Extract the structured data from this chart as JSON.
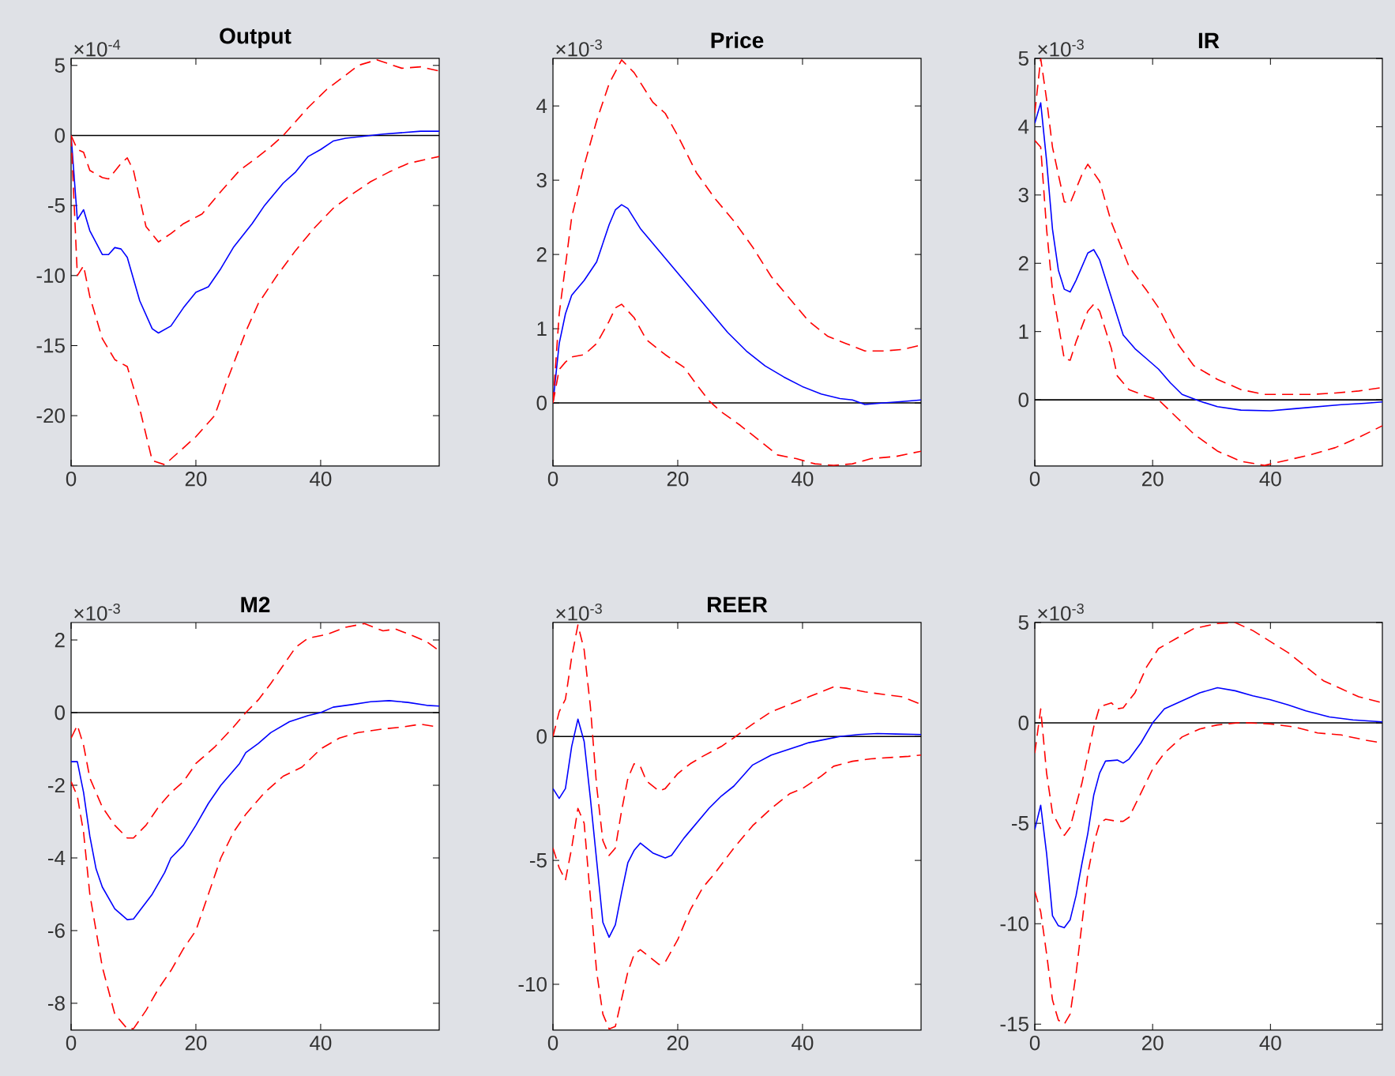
{
  "chart_data": [
    {
      "type": "line",
      "title": "Output",
      "annotations": [
        "×10$^{-4}$"
      ],
      "xlim": [
        0,
        59
      ],
      "xticks": [
        0,
        20,
        40
      ],
      "ylim": [
        -23.6,
        5.5
      ],
      "yticks": [
        -20,
        -15,
        -10,
        -5,
        0,
        5
      ],
      "ref_lines": [
        {
          "axis": "y",
          "value": 0,
          "color": "#000000"
        }
      ],
      "series": [
        {
          "color": "#0000ff",
          "line_style": "solid",
          "x": [
            0,
            1,
            2,
            3,
            5,
            6,
            7,
            8,
            9,
            11,
            13,
            14,
            16,
            18,
            20,
            22,
            24,
            26,
            29,
            31,
            34,
            36,
            38,
            40,
            42,
            44,
            46,
            48,
            50,
            53,
            56,
            59
          ],
          "values": [
            0,
            -6,
            -5.3,
            -6.8,
            -8.5,
            -8.5,
            -8,
            -8.1,
            -8.7,
            -11.8,
            -13.8,
            -14.1,
            -13.6,
            -12.3,
            -11.2,
            -10.8,
            -9.5,
            -8,
            -6.3,
            -5,
            -3.4,
            -2.6,
            -1.5,
            -1,
            -0.4,
            -0.2,
            -0.1,
            0,
            0.1,
            0.2,
            0.3,
            0.3
          ]
        },
        {
          "color": "#ff0000",
          "line_style": "dashed",
          "x": [
            0,
            1,
            2,
            3,
            5,
            6,
            8,
            9,
            10,
            12,
            14,
            16,
            18,
            21,
            24,
            27,
            30,
            32,
            34,
            36,
            38,
            41,
            44,
            46,
            49,
            51,
            53,
            56,
            59
          ],
          "values": [
            0,
            -1,
            -1.2,
            -2.5,
            -3,
            -3.1,
            -2,
            -1.6,
            -2.5,
            -6.5,
            -7.6,
            -7,
            -6.3,
            -5.6,
            -4,
            -2.5,
            -1.5,
            -0.8,
            0,
            1,
            2,
            3.3,
            4.3,
            5,
            5.4,
            5.1,
            4.8,
            4.9,
            4.6
          ]
        },
        {
          "color": "#ff0000",
          "line_style": "dashed",
          "x": [
            0,
            1,
            2,
            3,
            5,
            7,
            9,
            11,
            13,
            15,
            17,
            20,
            23,
            25,
            28,
            30,
            33,
            36,
            39,
            42,
            45,
            48,
            51,
            54,
            57,
            59
          ],
          "values": [
            0,
            -10,
            -9.3,
            -11.5,
            -14.5,
            -16,
            -16.5,
            -19.5,
            -23.2,
            -23.5,
            -22.7,
            -21.5,
            -20,
            -17.5,
            -14,
            -12,
            -10,
            -8.2,
            -6.6,
            -5.2,
            -4.2,
            -3.3,
            -2.6,
            -2,
            -1.7,
            -1.5
          ]
        }
      ]
    },
    {
      "type": "line",
      "title": "Price",
      "annotations": [
        "×10$^{-3}$"
      ],
      "xlim": [
        0,
        59
      ],
      "xticks": [
        0,
        20,
        40
      ],
      "ylim": [
        -0.85,
        4.64
      ],
      "yticks": [
        0,
        1,
        2,
        3,
        4
      ],
      "ref_lines": [
        {
          "axis": "y",
          "value": 0,
          "color": "#000000"
        }
      ],
      "series": [
        {
          "color": "#0000ff",
          "line_style": "solid",
          "x": [
            0,
            1,
            2,
            3,
            5,
            7,
            9,
            10,
            11,
            12,
            14,
            16,
            18,
            20,
            21,
            23,
            26,
            28,
            31,
            34,
            37,
            40,
            43,
            46,
            48,
            50,
            53,
            56,
            59
          ],
          "values": [
            0,
            0.8,
            1.2,
            1.45,
            1.65,
            1.9,
            2.4,
            2.6,
            2.67,
            2.62,
            2.35,
            2.15,
            1.95,
            1.75,
            1.65,
            1.45,
            1.15,
            0.95,
            0.7,
            0.5,
            0.35,
            0.22,
            0.12,
            0.06,
            0.04,
            -0.02,
            0,
            0.02,
            0.04
          ]
        },
        {
          "color": "#ff0000",
          "line_style": "dashed",
          "x": [
            0,
            1,
            3,
            5,
            7,
            9,
            11,
            13,
            16,
            18,
            20,
            23,
            26,
            29,
            32,
            35,
            38,
            41,
            44,
            47,
            50,
            53,
            56,
            59
          ],
          "values": [
            0,
            1.2,
            2.5,
            3.2,
            3.8,
            4.3,
            4.62,
            4.45,
            4.05,
            3.9,
            3.6,
            3.1,
            2.75,
            2.45,
            2.1,
            1.7,
            1.4,
            1.1,
            0.9,
            0.8,
            0.7,
            0.7,
            0.72,
            0.78
          ]
        },
        {
          "color": "#ff0000",
          "line_style": "dashed",
          "x": [
            0,
            1,
            2,
            3,
            5,
            7,
            9,
            10,
            11,
            13,
            15,
            18,
            21,
            23,
            25,
            27,
            30,
            33,
            36,
            39,
            42,
            45,
            48,
            51,
            55,
            59
          ],
          "values": [
            0,
            0.45,
            0.55,
            0.62,
            0.65,
            0.8,
            1.1,
            1.28,
            1.33,
            1.15,
            0.85,
            0.65,
            0.48,
            0.25,
            0.03,
            -0.12,
            -0.3,
            -0.5,
            -0.7,
            -0.75,
            -0.82,
            -0.84,
            -0.82,
            -0.75,
            -0.72,
            -0.65
          ]
        }
      ]
    },
    {
      "type": "line",
      "title": "IR",
      "annotations": [
        "×10$^{-3}$"
      ],
      "xlim": [
        0,
        59
      ],
      "xticks": [
        0,
        20,
        40
      ],
      "ylim": [
        -0.97,
        5
      ],
      "yticks": [
        0,
        1,
        2,
        3,
        4,
        5
      ],
      "ref_lines": [
        {
          "axis": "y",
          "value": 0,
          "color": "#000000"
        }
      ],
      "series": [
        {
          "color": "#0000ff",
          "line_style": "solid",
          "x": [
            0,
            1,
            2,
            3,
            4,
            5,
            6,
            7,
            9,
            10,
            11,
            13,
            15,
            17,
            19,
            21,
            23,
            25,
            28,
            31,
            35,
            40,
            44,
            48,
            52,
            56,
            59
          ],
          "values": [
            4.05,
            4.35,
            3.5,
            2.5,
            1.9,
            1.62,
            1.58,
            1.75,
            2.15,
            2.2,
            2.05,
            1.5,
            0.95,
            0.75,
            0.6,
            0.45,
            0.25,
            0.08,
            -0.02,
            -0.1,
            -0.15,
            -0.16,
            -0.13,
            -0.1,
            -0.07,
            -0.05,
            -0.03
          ]
        },
        {
          "color": "#ff0000",
          "line_style": "dashed",
          "x": [
            0,
            1,
            2,
            3,
            5,
            6,
            8,
            9,
            11,
            13,
            16,
            19,
            21,
            24,
            27,
            31,
            35,
            39,
            43,
            47,
            51,
            55,
            59
          ],
          "values": [
            4.2,
            5,
            4.4,
            3.7,
            2.9,
            2.88,
            3.3,
            3.45,
            3.2,
            2.6,
            1.95,
            1.6,
            1.35,
            0.85,
            0.5,
            0.3,
            0.15,
            0.08,
            0.08,
            0.08,
            0.1,
            0.13,
            0.18
          ]
        },
        {
          "color": "#ff0000",
          "line_style": "dashed",
          "x": [
            0,
            1,
            2,
            3,
            5,
            6,
            7,
            9,
            10,
            11,
            13,
            14,
            16,
            19,
            21,
            24,
            27,
            31,
            35,
            39,
            43,
            47,
            51,
            55,
            59
          ],
          "values": [
            3.8,
            3.7,
            2.5,
            1.6,
            0.6,
            0.58,
            0.85,
            1.3,
            1.4,
            1.3,
            0.75,
            0.35,
            0.15,
            0.05,
            0,
            -0.25,
            -0.5,
            -0.75,
            -0.9,
            -0.96,
            -0.88,
            -0.8,
            -0.7,
            -0.55,
            -0.38
          ]
        }
      ]
    },
    {
      "type": "line",
      "title": "M2",
      "annotations": [
        "×10$^{-3}$"
      ],
      "xlim": [
        0,
        59
      ],
      "xticks": [
        0,
        20,
        40
      ],
      "ylim": [
        -8.74,
        2.48
      ],
      "yticks": [
        -8,
        -6,
        -4,
        -2,
        0,
        2
      ],
      "ref_lines": [
        {
          "axis": "y",
          "value": 0,
          "color": "#000000"
        }
      ],
      "series": [
        {
          "color": "#0000ff",
          "line_style": "solid",
          "x": [
            0,
            1,
            2,
            3,
            4,
            5,
            7,
            9,
            10,
            11,
            13,
            15,
            16,
            18,
            20,
            22,
            24,
            27,
            28,
            30,
            32,
            35,
            38,
            40,
            42,
            45,
            48,
            51,
            54,
            57,
            59
          ],
          "values": [
            -1.35,
            -1.35,
            -2.2,
            -3.4,
            -4.3,
            -4.8,
            -5.4,
            -5.7,
            -5.68,
            -5.45,
            -5,
            -4.4,
            -4,
            -3.65,
            -3.1,
            -2.5,
            -2,
            -1.4,
            -1.1,
            -0.85,
            -0.55,
            -0.25,
            -0.08,
            0,
            0.15,
            0.22,
            0.3,
            0.33,
            0.28,
            0.2,
            0.18
          ]
        },
        {
          "color": "#ff0000",
          "line_style": "dashed",
          "x": [
            0,
            1,
            2,
            3,
            5,
            7,
            9,
            10,
            12,
            14,
            16,
            18,
            20,
            23,
            26,
            28,
            30,
            32,
            34,
            36,
            38,
            41,
            44,
            47,
            50,
            52,
            55,
            57,
            59
          ],
          "values": [
            -0.7,
            -0.35,
            -0.9,
            -1.8,
            -2.6,
            -3.1,
            -3.45,
            -3.45,
            -3.1,
            -2.6,
            -2.2,
            -1.9,
            -1.4,
            -0.95,
            -0.4,
            0,
            0.35,
            0.8,
            1.3,
            1.8,
            2.05,
            2.15,
            2.35,
            2.45,
            2.25,
            2.3,
            2.1,
            1.95,
            1.7
          ]
        },
        {
          "color": "#ff0000",
          "line_style": "dashed",
          "x": [
            0,
            1,
            2,
            3,
            5,
            7,
            9,
            10,
            12,
            14,
            16,
            18,
            20,
            22,
            24,
            26,
            28,
            31,
            34,
            37,
            40,
            43,
            46,
            50,
            53,
            56,
            59
          ],
          "values": [
            -1.9,
            -2.3,
            -3.3,
            -5,
            -7,
            -8.3,
            -8.7,
            -8.7,
            -8.2,
            -7.6,
            -7.1,
            -6.5,
            -6,
            -5,
            -4,
            -3.3,
            -2.8,
            -2.2,
            -1.75,
            -1.5,
            -1,
            -0.7,
            -0.55,
            -0.45,
            -0.4,
            -0.32,
            -0.4
          ]
        }
      ]
    },
    {
      "type": "line",
      "title": "REER",
      "annotations": [
        "×10$^{-3}$"
      ],
      "xlim": [
        0,
        59
      ],
      "xticks": [
        0,
        20,
        40
      ],
      "ylim": [
        -11.85,
        4.6
      ],
      "yticks": [
        -10,
        -5,
        0
      ],
      "ref_lines": [
        {
          "axis": "y",
          "value": 0,
          "color": "#000000"
        }
      ],
      "series": [
        {
          "color": "#0000ff",
          "line_style": "solid",
          "x": [
            0,
            1,
            2,
            3,
            4,
            5,
            6,
            7,
            8,
            9,
            10,
            11,
            12,
            13,
            14,
            16,
            18,
            19,
            21,
            23,
            25,
            27,
            29,
            32,
            35,
            38,
            41,
            44,
            46,
            49,
            52,
            55,
            59
          ],
          "values": [
            -2.1,
            -2.5,
            -2.1,
            -0.4,
            0.7,
            -0.2,
            -2.5,
            -5,
            -7.5,
            -8.1,
            -7.6,
            -6.3,
            -5.1,
            -4.6,
            -4.3,
            -4.7,
            -4.9,
            -4.8,
            -4.1,
            -3.5,
            -2.9,
            -2.4,
            -2,
            -1.15,
            -0.75,
            -0.5,
            -0.25,
            -0.1,
            0,
            0.08,
            0.12,
            0.1,
            0.08
          ]
        },
        {
          "color": "#ff0000",
          "line_style": "dashed",
          "x": [
            0,
            1,
            2,
            3,
            4,
            5,
            6,
            7,
            8,
            9,
            10,
            11,
            12,
            13,
            14,
            15,
            17,
            18,
            20,
            22,
            24,
            27,
            29,
            32,
            35,
            38,
            41,
            43,
            45,
            47,
            50,
            53,
            56,
            59
          ],
          "values": [
            0,
            1,
            1.5,
            3.2,
            4.5,
            3.5,
            1.2,
            -2,
            -4.2,
            -4.8,
            -4.5,
            -3,
            -1.7,
            -1.1,
            -1.2,
            -1.8,
            -2.2,
            -2.1,
            -1.5,
            -1.1,
            -0.8,
            -0.4,
            -0.05,
            0.5,
            1,
            1.3,
            1.6,
            1.8,
            2,
            1.95,
            1.8,
            1.7,
            1.6,
            1.3
          ]
        },
        {
          "color": "#ff0000",
          "line_style": "dashed",
          "x": [
            0,
            1,
            2,
            3,
            4,
            5,
            6,
            7,
            8,
            9,
            10,
            11,
            12,
            13,
            14,
            16,
            17,
            18,
            20,
            22,
            24,
            26,
            29,
            32,
            35,
            38,
            40,
            43,
            45,
            48,
            51,
            54,
            57,
            59
          ],
          "values": [
            -4.5,
            -5.3,
            -5.8,
            -4.5,
            -2.9,
            -3.5,
            -6.5,
            -9.5,
            -11.2,
            -11.8,
            -11.7,
            -10.6,
            -9.5,
            -8.8,
            -8.6,
            -9,
            -9.2,
            -9.1,
            -8.2,
            -7,
            -6.1,
            -5.5,
            -4.5,
            -3.6,
            -2.9,
            -2.3,
            -2.1,
            -1.6,
            -1.2,
            -1,
            -0.9,
            -0.85,
            -0.8,
            -0.75
          ]
        }
      ]
    },
    {
      "type": "line",
      "annotations": [
        "×10$^{-3}$"
      ],
      "xlim": [
        0,
        59
      ],
      "xticks": [
        0,
        20,
        40
      ],
      "ylim": [
        -15.3,
        5
      ],
      "yticks": [
        -15,
        -10,
        -5,
        0,
        5
      ],
      "ref_lines": [
        {
          "axis": "y",
          "value": 0,
          "color": "#000000"
        }
      ],
      "series": [
        {
          "color": "#0000ff",
          "line_style": "solid",
          "x": [
            0,
            1,
            2,
            3,
            4,
            5,
            6,
            7,
            8,
            9,
            10,
            11,
            12,
            14,
            15,
            16,
            18,
            20,
            22,
            25,
            28,
            31,
            34,
            37,
            40,
            43,
            46,
            50,
            54,
            59
          ],
          "values": [
            -5.3,
            -4.1,
            -6.5,
            -9.6,
            -10.1,
            -10.2,
            -9.8,
            -8.6,
            -7,
            -5.5,
            -3.6,
            -2.5,
            -1.9,
            -1.85,
            -2,
            -1.8,
            -1,
            0,
            0.7,
            1.1,
            1.5,
            1.75,
            1.6,
            1.35,
            1.15,
            0.9,
            0.6,
            0.3,
            0.15,
            0.05
          ]
        },
        {
          "color": "#ff0000",
          "line_style": "dashed",
          "x": [
            0,
            1,
            2,
            3,
            5,
            6,
            8,
            10,
            11,
            13,
            14,
            15,
            17,
            19,
            21,
            24,
            27,
            31,
            34,
            37,
            40,
            43,
            46,
            49,
            52,
            55,
            59
          ],
          "values": [
            -1.5,
            0.7,
            -2.5,
            -4.5,
            -5.6,
            -5.2,
            -3,
            -0.2,
            0.8,
            1,
            0.7,
            0.75,
            1.5,
            2.8,
            3.7,
            4.2,
            4.7,
            4.95,
            5,
            4.6,
            4.05,
            3.5,
            2.8,
            2.1,
            1.7,
            1.3,
            1
          ]
        },
        {
          "color": "#ff0000",
          "line_style": "dashed",
          "x": [
            0,
            1,
            2,
            3,
            4,
            5,
            6,
            7,
            8,
            9,
            10,
            11,
            12,
            14,
            15,
            16,
            18,
            20,
            22,
            25,
            28,
            31,
            35,
            40,
            44,
            48,
            52,
            56,
            59
          ],
          "values": [
            -8.4,
            -9.4,
            -11.5,
            -13.8,
            -14.8,
            -15,
            -14.5,
            -12.5,
            -10,
            -7.5,
            -6,
            -5,
            -4.8,
            -4.9,
            -4.9,
            -4.7,
            -3.5,
            -2.3,
            -1.5,
            -0.7,
            -0.3,
            -0.1,
            0.02,
            -0.05,
            -0.2,
            -0.5,
            -0.6,
            -0.85,
            -1
          ]
        }
      ]
    }
  ]
}
